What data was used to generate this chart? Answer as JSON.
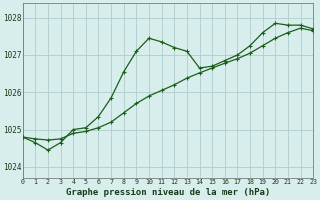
{
  "bg_color": "#d8eeed",
  "grid_color": "#b0cccc",
  "line_color": "#1a5e1a",
  "title": "Graphe pression niveau de la mer (hPa)",
  "xlim": [
    0,
    23
  ],
  "ylim": [
    1023.7,
    1028.4
  ],
  "yticks": [
    1024,
    1025,
    1026,
    1027,
    1028
  ],
  "xticks": [
    0,
    1,
    2,
    3,
    4,
    5,
    6,
    7,
    8,
    9,
    10,
    11,
    12,
    13,
    14,
    15,
    16,
    17,
    18,
    19,
    20,
    21,
    22,
    23
  ],
  "jagged_x": [
    0,
    1,
    2,
    3,
    4,
    5,
    6,
    7,
    8,
    9,
    10,
    11,
    12,
    13,
    14,
    15,
    16,
    17,
    18,
    19,
    20,
    21,
    22,
    23
  ],
  "jagged_y": [
    1024.8,
    1024.65,
    1024.45,
    1024.65,
    1025.0,
    1025.05,
    1025.35,
    1025.85,
    1026.55,
    1027.1,
    1027.45,
    1027.35,
    1027.2,
    1027.1,
    1026.65,
    1026.7,
    1026.85,
    1027.0,
    1027.25,
    1027.6,
    1027.85,
    1027.8,
    1027.8,
    1027.7
  ],
  "smooth_x": [
    0,
    1,
    2,
    3,
    4,
    5,
    6,
    7,
    8,
    9,
    10,
    11,
    12,
    13,
    14,
    15,
    16,
    17,
    18,
    19,
    20,
    21,
    22,
    23
  ],
  "smooth_y": [
    1024.8,
    1024.75,
    1024.72,
    1024.75,
    1024.9,
    1024.95,
    1025.05,
    1025.2,
    1025.45,
    1025.7,
    1025.9,
    1026.05,
    1026.2,
    1026.38,
    1026.52,
    1026.65,
    1026.78,
    1026.9,
    1027.05,
    1027.25,
    1027.45,
    1027.6,
    1027.72,
    1027.65
  ]
}
